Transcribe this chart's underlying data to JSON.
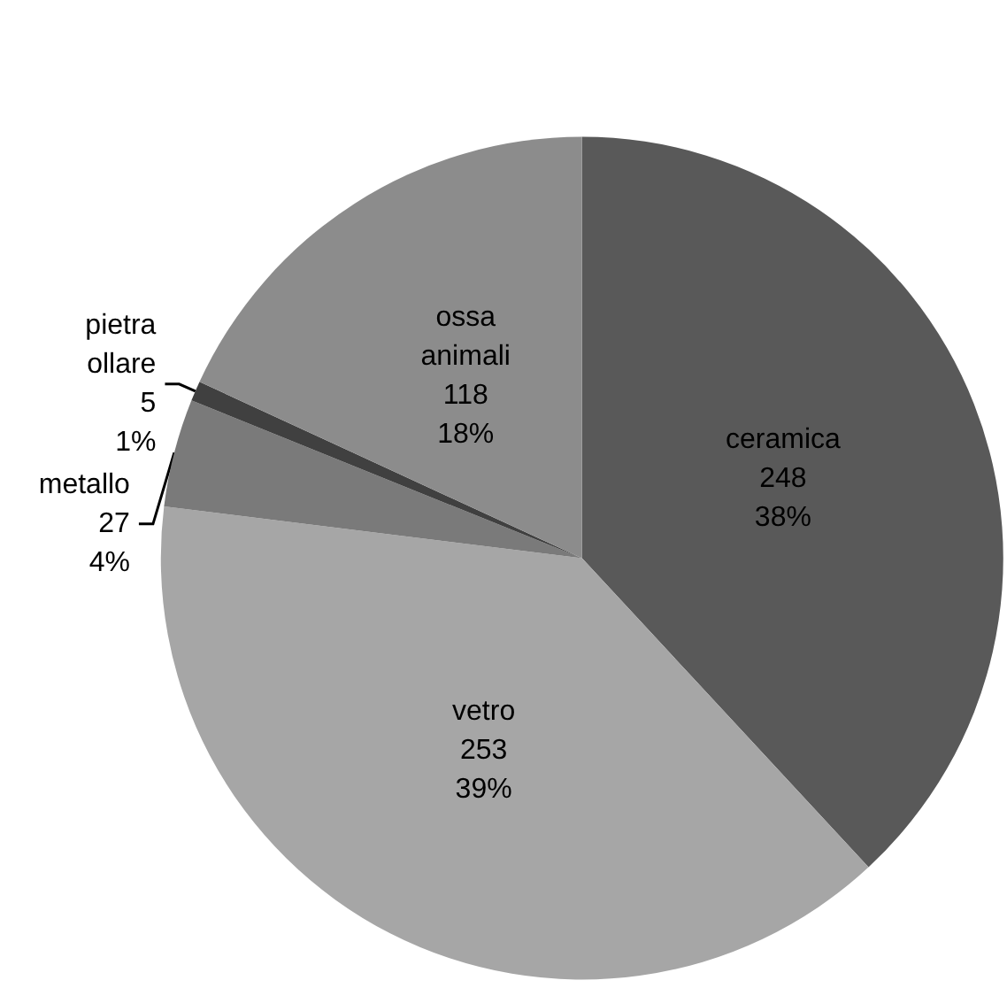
{
  "chart_data": {
    "type": "pie",
    "categories": [
      "ceramica",
      "vetro",
      "metallo",
      "pietra ollare",
      "ossa animali"
    ],
    "values": [
      248,
      253,
      27,
      5,
      118
    ],
    "value_labels": [
      "248\n38%",
      "253\n39%",
      "27\n4%",
      "5\n1%",
      "118\n18%"
    ],
    "colors": [
      "#595959",
      "#a6a6a6",
      "#7a7a7a",
      "#404040",
      "#8c8c8c"
    ],
    "legend": false
  }
}
